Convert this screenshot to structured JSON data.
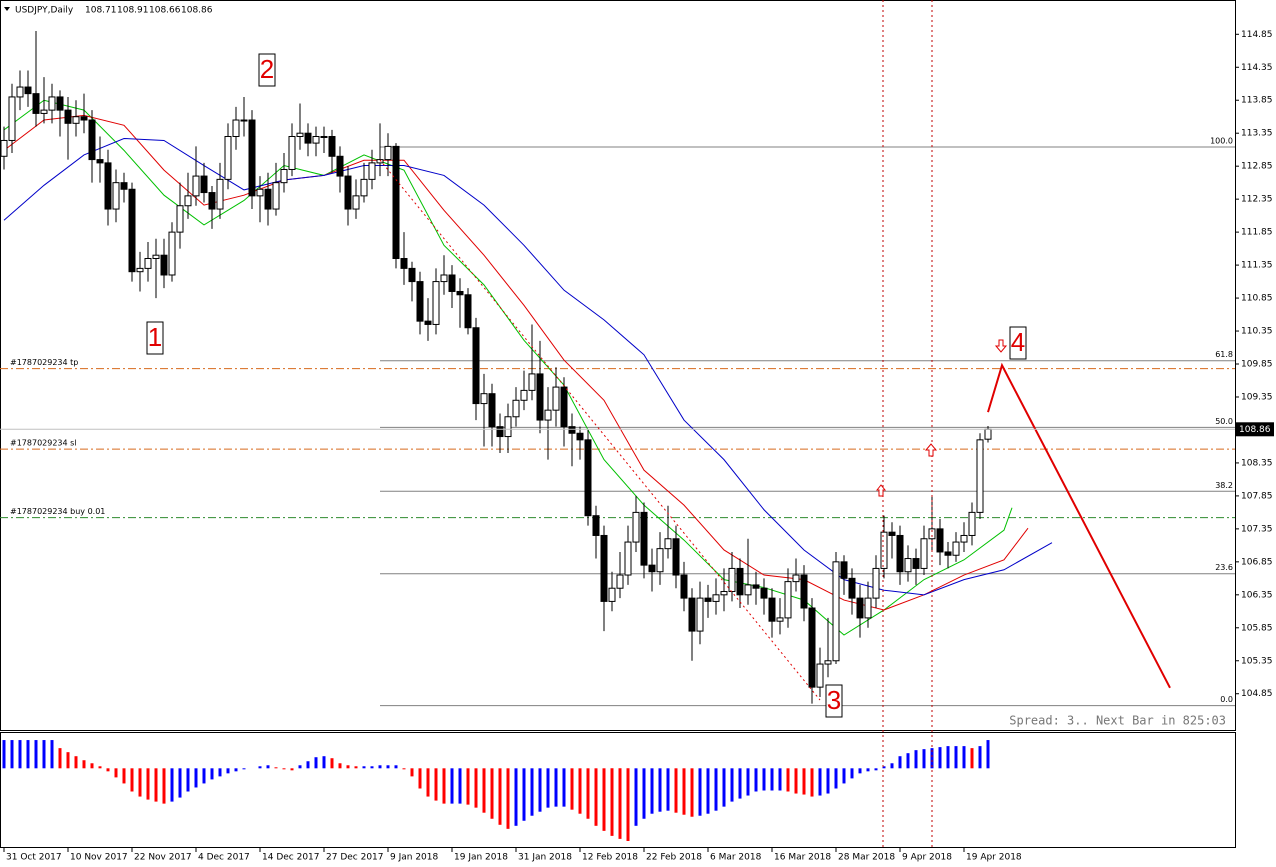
{
  "chart_data": {
    "type": "candlestick",
    "symbol": "USDJPY,Daily",
    "categories": [
      "31 Oct 2017",
      null,
      null,
      null,
      null,
      null,
      null,
      null,
      "10 Nov 2017",
      null,
      null,
      null,
      null,
      null,
      null,
      null,
      "22 Nov 2017",
      null,
      null,
      null,
      null,
      null,
      null,
      null,
      "4 Dec 2017",
      null,
      null,
      null,
      null,
      null,
      null,
      null,
      "14 Dec 2017",
      null,
      null,
      null,
      null,
      null,
      null,
      null,
      "27 Dec 2017",
      null,
      null,
      null,
      null,
      null,
      null,
      null,
      "9 Jan 2018",
      null,
      null,
      null,
      null,
      null,
      null,
      null,
      "19 Jan 2018",
      null,
      null,
      null,
      null,
      null,
      null,
      null,
      "31 Jan 2018",
      null,
      null,
      null,
      null,
      null,
      null,
      null,
      "12 Feb 2018",
      null,
      null,
      null,
      null,
      null,
      null,
      null,
      "22 Feb 2018",
      null,
      null,
      null,
      null,
      null,
      null,
      null,
      "6 Mar 2018",
      null,
      null,
      null,
      null,
      null,
      null,
      null,
      "16 Mar 2018",
      null,
      null,
      null,
      null,
      null,
      null,
      null,
      "28 Mar 2018",
      null,
      null,
      null,
      null,
      null,
      null,
      null,
      "9 Apr 2018",
      null,
      null,
      null,
      null,
      null,
      null,
      null,
      "19 Apr 2018",
      null,
      null,
      null
    ],
    "open": [
      113.0,
      113.24,
      113.9,
      114.05,
      113.95,
      113.65,
      113.7,
      113.9,
      113.7,
      113.5,
      113.6,
      113.55,
      112.95,
      112.9,
      112.2,
      112.6,
      112.5,
      111.25,
      111.3,
      111.45,
      111.5,
      111.2,
      111.85,
      112.25,
      112.4,
      112.7,
      112.45,
      112.2,
      112.65,
      113.3,
      113.55,
      113.55,
      112.4,
      112.5,
      112.2,
      112.6,
      112.8,
      113.3,
      113.35,
      113.2,
      113.3,
      113.3,
      113.0,
      112.7,
      112.2,
      112.4,
      112.65,
      112.9,
      112.95,
      113.15,
      111.45,
      111.3,
      111.1,
      110.5,
      110.45,
      111.1,
      111.2,
      110.95,
      110.9,
      110.4,
      109.25,
      109.4,
      108.9,
      108.75,
      109.05,
      109.3,
      109.45,
      109.7,
      109.0,
      109.15,
      109.5,
      108.9,
      108.8,
      108.7,
      107.55,
      107.25,
      106.25,
      106.45,
      106.65,
      107.15,
      107.6,
      106.8,
      106.7,
      107.05,
      107.2,
      106.65,
      106.3,
      105.8,
      106.3,
      106.25,
      106.35,
      106.4,
      106.75,
      106.35,
      106.5,
      106.45,
      106.3,
      105.95,
      106.0,
      106.55,
      106.65,
      106.15,
      104.95,
      105.3,
      105.35,
      106.85,
      106.6,
      106.3,
      106.0,
      106.3,
      106.75,
      107.3,
      107.25,
      106.7,
      106.9,
      106.75,
      107.2,
      107.35,
      107.0,
      106.95,
      107.15,
      107.25,
      107.6,
      108.71
    ],
    "high": [
      113.45,
      114.1,
      114.3,
      114.3,
      114.9,
      114.2,
      114.1,
      114.0,
      113.9,
      113.85,
      113.95,
      113.7,
      113.3,
      113.1,
      112.8,
      112.75,
      112.6,
      111.55,
      111.7,
      111.75,
      111.75,
      112.0,
      112.6,
      112.75,
      113.15,
      112.9,
      112.55,
      112.9,
      113.5,
      113.75,
      113.9,
      113.7,
      112.7,
      112.75,
      112.9,
      113.05,
      113.5,
      113.8,
      113.5,
      113.45,
      113.45,
      113.4,
      113.15,
      112.85,
      112.65,
      112.9,
      113.1,
      113.5,
      113.35,
      113.2,
      111.85,
      111.4,
      111.25,
      110.85,
      111.3,
      111.5,
      111.35,
      111.15,
      111.0,
      110.55,
      109.7,
      109.55,
      109.1,
      109.25,
      109.5,
      109.75,
      110.45,
      110.2,
      109.5,
      109.8,
      109.65,
      109.1,
      108.9,
      108.85,
      107.7,
      107.4,
      106.7,
      107.0,
      107.4,
      107.85,
      107.75,
      107.05,
      107.3,
      107.7,
      107.4,
      106.85,
      106.45,
      106.55,
      106.5,
      106.6,
      106.75,
      107.0,
      106.9,
      107.2,
      106.7,
      106.6,
      106.45,
      106.3,
      106.75,
      106.9,
      106.8,
      106.3,
      105.55,
      106.0,
      107.0,
      106.95,
      106.75,
      106.5,
      106.55,
      106.95,
      107.55,
      107.45,
      107.4,
      107.1,
      107.05,
      107.4,
      107.85,
      107.5,
      107.15,
      107.3,
      107.45,
      107.75,
      108.8,
      108.91
    ],
    "low": [
      112.8,
      113.05,
      113.7,
      113.75,
      113.45,
      113.5,
      113.5,
      113.3,
      112.95,
      113.3,
      113.35,
      112.6,
      112.6,
      111.95,
      112.0,
      112.3,
      111.1,
      110.95,
      111.1,
      110.85,
      111.0,
      111.1,
      111.6,
      112.05,
      112.25,
      112.3,
      111.9,
      112.05,
      112.5,
      113.1,
      113.3,
      112.2,
      112.0,
      111.95,
      112.1,
      112.45,
      112.7,
      113.1,
      113.0,
      113.0,
      113.05,
      112.75,
      112.45,
      111.95,
      112.05,
      112.3,
      112.5,
      112.7,
      112.7,
      111.3,
      111.05,
      110.8,
      110.3,
      110.2,
      110.3,
      110.9,
      110.7,
      110.4,
      110.3,
      109.0,
      108.6,
      108.6,
      108.5,
      108.5,
      108.9,
      109.15,
      109.3,
      108.8,
      108.4,
      108.9,
      108.6,
      108.3,
      108.4,
      107.4,
      106.9,
      105.8,
      106.1,
      106.3,
      106.5,
      107.0,
      106.6,
      106.4,
      106.5,
      106.9,
      106.45,
      106.1,
      105.35,
      105.6,
      106.0,
      106.05,
      106.1,
      106.25,
      106.15,
      106.2,
      106.2,
      106.05,
      105.7,
      105.75,
      105.85,
      106.4,
      105.95,
      104.7,
      104.8,
      105.1,
      105.3,
      106.35,
      106.05,
      105.7,
      105.85,
      106.15,
      106.6,
      106.9,
      106.5,
      106.55,
      106.5,
      106.65,
      107.0,
      106.8,
      106.75,
      106.85,
      107.0,
      107.1,
      107.5,
      108.66
    ],
    "close": [
      113.24,
      113.9,
      114.05,
      113.95,
      113.65,
      113.7,
      113.9,
      113.7,
      113.5,
      113.6,
      113.55,
      112.95,
      112.9,
      112.2,
      112.6,
      112.5,
      111.25,
      111.3,
      111.45,
      111.5,
      111.2,
      111.85,
      112.25,
      112.4,
      112.7,
      112.45,
      112.2,
      112.65,
      113.3,
      113.55,
      113.55,
      112.4,
      112.5,
      112.2,
      112.6,
      112.8,
      113.3,
      113.35,
      113.2,
      113.3,
      113.3,
      113.0,
      112.7,
      112.2,
      112.4,
      112.65,
      112.9,
      112.95,
      113.15,
      111.45,
      111.3,
      111.1,
      110.5,
      110.45,
      111.1,
      111.2,
      110.95,
      110.9,
      110.4,
      109.25,
      109.4,
      108.9,
      108.75,
      109.05,
      109.3,
      109.45,
      109.7,
      109.0,
      109.15,
      109.5,
      108.9,
      108.8,
      108.7,
      107.55,
      107.25,
      106.25,
      106.45,
      106.65,
      107.15,
      107.6,
      106.8,
      106.7,
      107.05,
      107.2,
      106.65,
      106.3,
      105.8,
      106.3,
      106.25,
      106.35,
      106.4,
      106.75,
      106.35,
      106.5,
      106.45,
      106.3,
      105.95,
      106.0,
      106.55,
      106.65,
      106.15,
      104.95,
      105.3,
      105.35,
      106.85,
      106.6,
      106.3,
      106.0,
      106.3,
      106.75,
      107.3,
      107.25,
      106.7,
      106.9,
      106.75,
      107.2,
      107.35,
      107.0,
      106.95,
      107.15,
      107.25,
      107.6,
      108.7,
      108.86
    ],
    "ylim": [
      104.3,
      115.37
    ],
    "yticks": [
      114.85,
      114.35,
      113.85,
      113.35,
      112.85,
      112.35,
      111.85,
      111.35,
      110.85,
      110.35,
      109.85,
      109.35,
      108.35,
      107.85,
      107.35,
      106.85,
      106.35,
      105.85,
      105.35,
      104.85
    ],
    "moving_averages": [
      {
        "color": "#00c000",
        "x": [
          0,
          5,
          10,
          15,
          20,
          25,
          30,
          35,
          40,
          45,
          50,
          55,
          60,
          65,
          70,
          75,
          80,
          85,
          90,
          95,
          100,
          105,
          110,
          115,
          120,
          125,
          126
        ],
        "values": [
          113.4,
          113.85,
          113.7,
          113.09,
          112.41,
          111.96,
          112.33,
          112.86,
          112.71,
          113.02,
          112.79,
          111.65,
          111.05,
          110.21,
          109.53,
          108.4,
          107.71,
          107.18,
          106.58,
          106.46,
          106.27,
          105.74,
          106.12,
          106.58,
          106.88,
          107.33,
          107.67
        ]
      },
      {
        "color": "#e00000",
        "x": [
          0,
          5,
          10,
          15,
          20,
          25,
          30,
          35,
          40,
          45,
          50,
          55,
          60,
          65,
          70,
          75,
          80,
          85,
          90,
          95,
          100,
          105,
          110,
          115,
          120,
          125,
          128
        ],
        "values": [
          113.09,
          113.55,
          113.62,
          113.47,
          112.79,
          112.26,
          112.41,
          112.64,
          112.71,
          112.94,
          112.94,
          112.18,
          111.5,
          110.74,
          109.91,
          109.3,
          108.24,
          107.71,
          107.03,
          106.65,
          106.58,
          106.27,
          106.12,
          106.35,
          106.65,
          106.88,
          107.36
        ]
      },
      {
        "color": "#0000c8",
        "x": [
          0,
          5,
          10,
          15,
          20,
          25,
          30,
          35,
          40,
          45,
          50,
          55,
          60,
          65,
          70,
          75,
          80,
          85,
          90,
          95,
          100,
          105,
          110,
          115,
          120,
          125,
          131
        ],
        "values": [
          112.03,
          112.56,
          113.02,
          113.27,
          113.24,
          112.86,
          112.49,
          112.64,
          112.71,
          112.86,
          112.86,
          112.71,
          112.26,
          111.65,
          110.97,
          110.52,
          109.99,
          109.0,
          108.4,
          107.64,
          107.03,
          106.58,
          106.42,
          106.35,
          106.58,
          106.73,
          107.14
        ]
      }
    ],
    "forecast": {
      "color": "#e00000",
      "x": [
        123,
        124.75,
        145.75
      ],
      "values": [
        109.12,
        109.83,
        104.94
      ]
    },
    "fib_labels": [
      "100.0",
      "61.8",
      "50.0",
      "38.2",
      "23.6",
      "0.0"
    ],
    "fib_prices": [
      113.14,
      109.9,
      108.89,
      107.92,
      106.67,
      104.67
    ],
    "orders": [
      {
        "label": "#1787029234 tp",
        "price": 109.78,
        "color": "#d86a1c"
      },
      {
        "label": "#1787029234 sl",
        "price": 108.56,
        "color": "#d86a1c"
      },
      {
        "label": "#1787029234 buy 0.01",
        "price": 107.52,
        "color": "#2e8b2e"
      }
    ],
    "wave_labels": [
      "1",
      "2",
      "3",
      "4"
    ],
    "status": "Spread: 3.. Next Bar in 825:03",
    "oscillator": {
      "ylim": [
        -0.78,
        0.35
      ],
      "up_color": "#0000ff",
      "down_color": "#ff0000",
      "values": [
        0.28,
        0.28,
        0.28,
        0.28,
        0.28,
        0.28,
        0.28,
        0.2,
        0.16,
        0.12,
        0.08,
        0.05,
        0.02,
        -0.03,
        -0.09,
        -0.15,
        -0.23,
        -0.28,
        -0.31,
        -0.33,
        -0.35,
        -0.33,
        -0.29,
        -0.23,
        -0.19,
        -0.15,
        -0.11,
        -0.08,
        -0.05,
        -0.03,
        -0.01,
        0.0,
        0.02,
        0.03,
        0.01,
        -0.01,
        -0.02,
        0.03,
        0.07,
        0.11,
        0.12,
        0.1,
        0.05,
        0.03,
        0.02,
        0.02,
        0.02,
        0.03,
        0.03,
        0.03,
        -0.01,
        -0.08,
        -0.2,
        -0.28,
        -0.32,
        -0.35,
        -0.35,
        -0.35,
        -0.36,
        -0.39,
        -0.44,
        -0.5,
        -0.56,
        -0.6,
        -0.57,
        -0.52,
        -0.47,
        -0.43,
        -0.39,
        -0.38,
        -0.38,
        -0.41,
        -0.45,
        -0.5,
        -0.57,
        -0.62,
        -0.67,
        -0.7,
        -0.72,
        -0.57,
        -0.5,
        -0.45,
        -0.43,
        -0.42,
        -0.44,
        -0.46,
        -0.48,
        -0.47,
        -0.45,
        -0.42,
        -0.38,
        -0.33,
        -0.3,
        -0.27,
        -0.23,
        -0.22,
        -0.22,
        -0.22,
        -0.23,
        -0.25,
        -0.26,
        -0.28,
        -0.27,
        -0.25,
        -0.2,
        -0.15,
        -0.1,
        -0.05,
        -0.03,
        -0.02,
        0.02,
        0.05,
        0.12,
        0.15,
        0.18,
        0.19,
        0.2,
        0.21,
        0.22,
        0.22,
        0.22,
        0.2,
        0.22,
        0.28
      ]
    }
  }
}
